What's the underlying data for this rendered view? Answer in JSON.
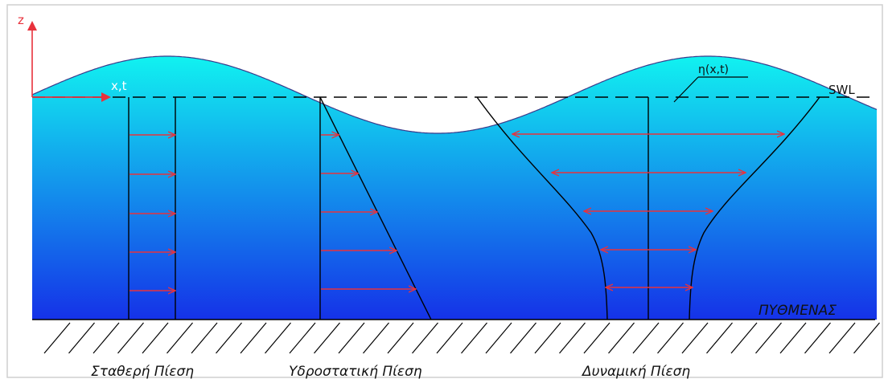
{
  "axis": {
    "z_label": "z",
    "x_label": "x,t"
  },
  "labels": {
    "eta": "η(x,t)",
    "swl": "SWL",
    "seabed": "ΠΥΘΜΕΝΑΣ",
    "uniform": "Σταθερή Πίεση",
    "hydrostatic": "Υδροστατική Πίεση",
    "dynamic": "Δυναμική Πίεση"
  },
  "colors": {
    "water_top": "#11f2f0",
    "water_bottom": "#1532e8",
    "arrow": "#e8323c",
    "axis": "#e8323c",
    "line": "#000000"
  }
}
